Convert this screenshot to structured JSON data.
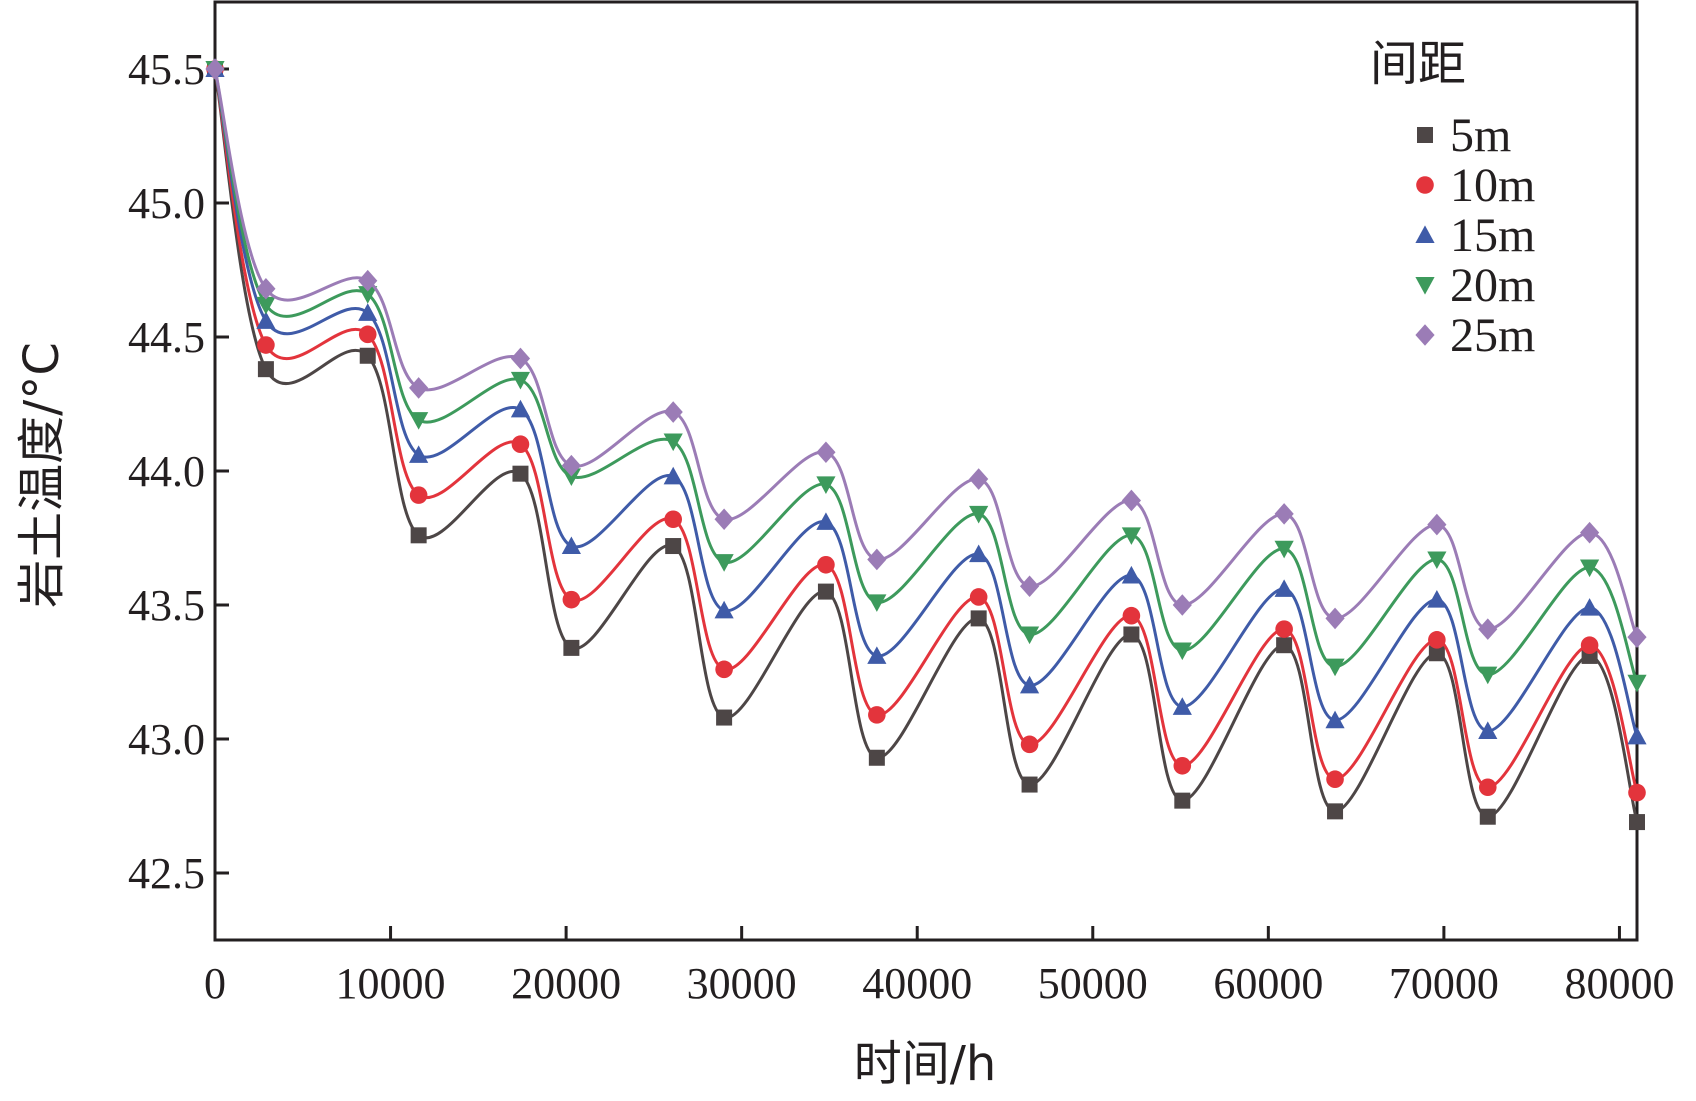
{
  "chart_data": {
    "type": "line",
    "xlabel": "时间/h",
    "ylabel": "岩土温度/°C",
    "xlim": [
      0,
      81000
    ],
    "ylim": [
      42.25,
      45.75
    ],
    "x_ticks": [
      0,
      10000,
      20000,
      30000,
      40000,
      50000,
      60000,
      70000,
      80000
    ],
    "x_tick_labels": [
      "0",
      "10000",
      "20000",
      "30000",
      "40000",
      "50000",
      "60000",
      "70000",
      "80000"
    ],
    "y_ticks": [
      42.5,
      43.0,
      43.5,
      44.0,
      44.5,
      45.0,
      45.5
    ],
    "y_tick_labels": [
      "42.5",
      "43.0",
      "43.5",
      "44.0",
      "44.5",
      "45.0",
      "45.5"
    ],
    "grid": false,
    "legend": {
      "title": "间距",
      "position": "top-right"
    },
    "x": [
      0,
      2900,
      8700,
      11600,
      17400,
      20300,
      26100,
      29000,
      34800,
      37700,
      43500,
      46400,
      52200,
      55100,
      60900,
      63800,
      69600,
      72500,
      78300,
      81000
    ],
    "series": [
      {
        "name": "5m",
        "color": "#4d4646",
        "marker": "square",
        "values": [
          45.5,
          44.38,
          44.43,
          43.76,
          43.99,
          43.34,
          43.72,
          43.08,
          43.55,
          42.93,
          43.45,
          42.83,
          43.39,
          42.77,
          43.35,
          42.73,
          43.32,
          42.71,
          43.31,
          42.69
        ]
      },
      {
        "name": "10m",
        "color": "#e3343c",
        "marker": "circle",
        "values": [
          45.5,
          44.47,
          44.51,
          43.91,
          44.1,
          43.52,
          43.82,
          43.26,
          43.65,
          43.09,
          43.53,
          42.98,
          43.46,
          42.9,
          43.41,
          42.85,
          43.37,
          42.82,
          43.35,
          42.8
        ]
      },
      {
        "name": "15m",
        "color": "#3f5ba8",
        "marker": "triangle-up",
        "values": [
          45.5,
          44.56,
          44.59,
          44.06,
          44.23,
          43.72,
          43.98,
          43.48,
          43.81,
          43.31,
          43.69,
          43.2,
          43.61,
          43.12,
          43.56,
          43.07,
          43.52,
          43.03,
          43.49,
          43.01
        ]
      },
      {
        "name": "20m",
        "color": "#3d9a5c",
        "marker": "triangle-down",
        "values": [
          45.5,
          44.62,
          44.66,
          44.19,
          44.34,
          43.98,
          44.11,
          43.66,
          43.95,
          43.51,
          43.84,
          43.39,
          43.76,
          43.33,
          43.71,
          43.27,
          43.67,
          43.24,
          43.64,
          43.21
        ]
      },
      {
        "name": "25m",
        "color": "#9b7cb6",
        "marker": "diamond",
        "values": [
          45.5,
          44.68,
          44.71,
          44.31,
          44.42,
          44.02,
          44.22,
          43.82,
          44.07,
          43.67,
          43.97,
          43.57,
          43.89,
          43.5,
          43.84,
          43.45,
          43.8,
          43.41,
          43.77,
          43.38
        ]
      }
    ]
  }
}
